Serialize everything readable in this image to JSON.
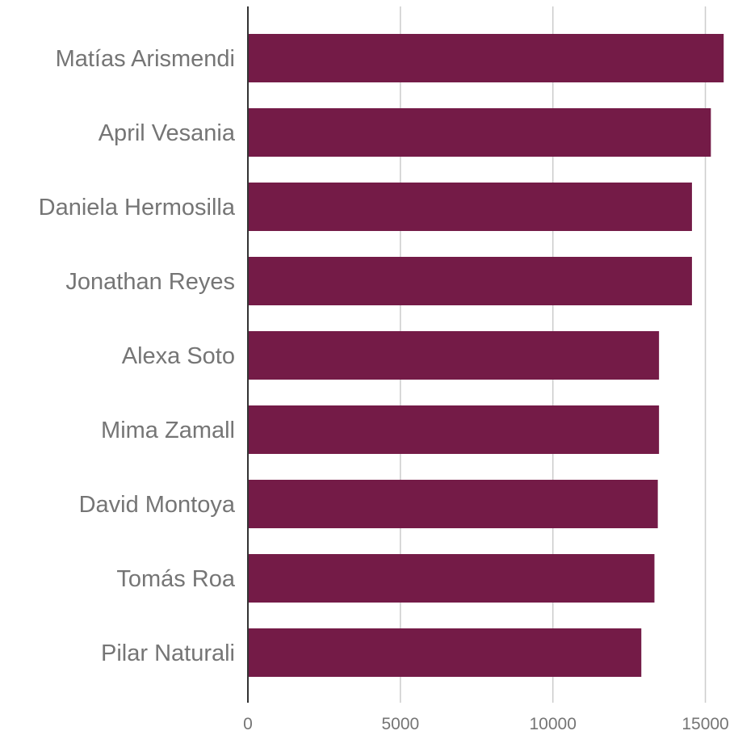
{
  "chart_data": {
    "type": "bar",
    "orientation": "horizontal",
    "categories": [
      "Matías Arismendi",
      "April Vesania",
      "Daniela Hermosilla",
      "Jonathan Reyes",
      "Alexa Soto",
      "Mima Zamall",
      "David Montoya",
      "Tomás Roa",
      "Pilar Naturali"
    ],
    "values": [
      15600,
      15180,
      14560,
      14560,
      13480,
      13480,
      13440,
      13330,
      12900
    ],
    "xticks": [
      0,
      5000,
      10000,
      15000
    ],
    "xlim": [
      0,
      15600
    ],
    "grid": true,
    "legend": "none",
    "title": "",
    "xlabel": "",
    "ylabel": "",
    "bar_color": "#741b47",
    "label_color": "#757575"
  }
}
